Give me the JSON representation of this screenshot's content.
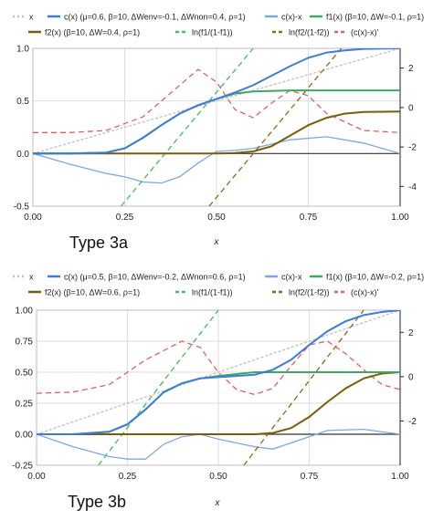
{
  "chart_data": [
    {
      "type": "line",
      "panel_label": "Type 3a",
      "xlabel": "x",
      "xlim": [
        0,
        1
      ],
      "ylim": [
        -0.5,
        1.0
      ],
      "y2lim": [
        -5,
        3
      ],
      "x_ticks": [
        "0.00",
        "0.25",
        "0.50",
        "0.75",
        "1.00"
      ],
      "y_ticks": [
        "-0.5",
        "0.0",
        "0.5",
        "1.0"
      ],
      "y2_ticks": [
        "-4",
        "-2",
        "0",
        "2"
      ],
      "legend_position": "top",
      "series": [
        {
          "name": "x",
          "color": "#c0c0c0",
          "style": "dotted",
          "axis": "left",
          "points": [
            [
              0,
              0
            ],
            [
              1,
              1
            ]
          ]
        },
        {
          "name": "c(x) (μ=0.6, β=10, ΔWenv=-0.1, ΔWnon=0.4, ρ=1)",
          "color": "#3b7dd8",
          "style": "solid",
          "axis": "left",
          "points": [
            [
              0,
              0
            ],
            [
              0.1,
              0
            ],
            [
              0.2,
              0.01
            ],
            [
              0.25,
              0.05
            ],
            [
              0.3,
              0.15
            ],
            [
              0.35,
              0.27
            ],
            [
              0.4,
              0.38
            ],
            [
              0.45,
              0.46
            ],
            [
              0.5,
              0.52
            ],
            [
              0.55,
              0.58
            ],
            [
              0.6,
              0.65
            ],
            [
              0.65,
              0.74
            ],
            [
              0.7,
              0.83
            ],
            [
              0.75,
              0.91
            ],
            [
              0.8,
              0.96
            ],
            [
              0.85,
              0.98
            ],
            [
              0.9,
              0.995
            ],
            [
              1.0,
              1.0
            ]
          ]
        },
        {
          "name": "c(x)-x",
          "color": "#7aa7e6",
          "style": "solid",
          "axis": "left",
          "points": [
            [
              0,
              0
            ],
            [
              0.1,
              -0.1
            ],
            [
              0.2,
              -0.19
            ],
            [
              0.25,
              -0.22
            ],
            [
              0.3,
              -0.27
            ],
            [
              0.35,
              -0.28
            ],
            [
              0.4,
              -0.22
            ],
            [
              0.45,
              -0.09
            ],
            [
              0.5,
              0.02
            ],
            [
              0.55,
              0.03
            ],
            [
              0.6,
              0.05
            ],
            [
              0.7,
              0.13
            ],
            [
              0.8,
              0.16
            ],
            [
              0.9,
              0.1
            ],
            [
              1.0,
              0.0
            ]
          ]
        },
        {
          "name": "f1(x) (β=10, ΔW=-0.1, ρ=1)",
          "color": "#3fa860",
          "style": "solid",
          "axis": "left",
          "points": [
            [
              0,
              0
            ],
            [
              0.1,
              0
            ],
            [
              0.2,
              0.01
            ],
            [
              0.25,
              0.05
            ],
            [
              0.3,
              0.15
            ],
            [
              0.35,
              0.27
            ],
            [
              0.4,
              0.38
            ],
            [
              0.45,
              0.46
            ],
            [
              0.5,
              0.52
            ],
            [
              0.55,
              0.57
            ],
            [
              0.6,
              0.59
            ],
            [
              0.7,
              0.6
            ],
            [
              1.0,
              0.6
            ]
          ]
        },
        {
          "name": "f2(x) (β=10, ΔW=0.4, ρ=1)",
          "color": "#7a5c0a",
          "style": "solid",
          "axis": "left",
          "points": [
            [
              0,
              0
            ],
            [
              0.5,
              0
            ],
            [
              0.55,
              0.005
            ],
            [
              0.6,
              0.02
            ],
            [
              0.65,
              0.07
            ],
            [
              0.7,
              0.17
            ],
            [
              0.75,
              0.27
            ],
            [
              0.8,
              0.34
            ],
            [
              0.85,
              0.38
            ],
            [
              0.9,
              0.395
            ],
            [
              1.0,
              0.4
            ]
          ]
        },
        {
          "name": "ln(f1/(1-f1))",
          "color": "#3fbf5e",
          "style": "dashed",
          "axis": "right",
          "points": [
            [
              0.24,
              -5
            ],
            [
              0.6,
              3
            ]
          ]
        },
        {
          "name": "ln(f2/(1-f2))",
          "color": "#8b6a10",
          "style": "dashed",
          "axis": "right",
          "points": [
            [
              0.48,
              -5
            ],
            [
              0.84,
              3
            ]
          ]
        },
        {
          "name": "(c(x)-x)'",
          "color": "#e06060",
          "style": "dashed",
          "axis": "left",
          "points": [
            [
              0,
              0.2
            ],
            [
              0.1,
              0.2
            ],
            [
              0.2,
              0.22
            ],
            [
              0.3,
              0.35
            ],
            [
              0.4,
              0.65
            ],
            [
              0.45,
              0.8
            ],
            [
              0.5,
              0.68
            ],
            [
              0.55,
              0.42
            ],
            [
              0.6,
              0.34
            ],
            [
              0.65,
              0.48
            ],
            [
              0.7,
              0.6
            ],
            [
              0.75,
              0.55
            ],
            [
              0.8,
              0.38
            ],
            [
              0.9,
              0.22
            ],
            [
              1.0,
              0.2
            ]
          ]
        }
      ]
    },
    {
      "type": "line",
      "panel_label": "Type 3b",
      "xlabel": "x",
      "xlim": [
        0,
        1
      ],
      "ylim": [
        -0.25,
        1.0
      ],
      "y2lim": [
        -4,
        3
      ],
      "x_ticks": [
        "0.00",
        "0.25",
        "0.50",
        "0.75",
        "1.00"
      ],
      "y_ticks": [
        "-0.25",
        "0.00",
        "0.25",
        "0.50",
        "0.75",
        "1.00"
      ],
      "y2_ticks": [
        "-2",
        "0",
        "2"
      ],
      "legend_position": "top",
      "series": [
        {
          "name": "x",
          "color": "#c0c0c0",
          "style": "dotted",
          "axis": "left",
          "points": [
            [
              0,
              0
            ],
            [
              1,
              1
            ]
          ]
        },
        {
          "name": "c(x) (μ=0.5, β=10, ΔWenv=-0.2, ΔWnon=0.6, ρ=1)",
          "color": "#3b7dd8",
          "style": "solid",
          "axis": "left",
          "points": [
            [
              0,
              0
            ],
            [
              0.1,
              0
            ],
            [
              0.2,
              0.02
            ],
            [
              0.25,
              0.08
            ],
            [
              0.3,
              0.2
            ],
            [
              0.35,
              0.34
            ],
            [
              0.4,
              0.41
            ],
            [
              0.45,
              0.45
            ],
            [
              0.5,
              0.46
            ],
            [
              0.6,
              0.48
            ],
            [
              0.65,
              0.52
            ],
            [
              0.7,
              0.6
            ],
            [
              0.75,
              0.72
            ],
            [
              0.8,
              0.83
            ],
            [
              0.85,
              0.91
            ],
            [
              0.9,
              0.96
            ],
            [
              0.95,
              0.985
            ],
            [
              1.0,
              1.0
            ]
          ]
        },
        {
          "name": "c(x)-x",
          "color": "#7aa7e6",
          "style": "solid",
          "axis": "left",
          "points": [
            [
              0,
              0
            ],
            [
              0.1,
              -0.1
            ],
            [
              0.2,
              -0.18
            ],
            [
              0.25,
              -0.2
            ],
            [
              0.3,
              -0.2
            ],
            [
              0.35,
              -0.08
            ],
            [
              0.4,
              -0.02
            ],
            [
              0.45,
              0.0
            ],
            [
              0.5,
              -0.04
            ],
            [
              0.6,
              -0.1
            ],
            [
              0.65,
              -0.12
            ],
            [
              0.7,
              -0.07
            ],
            [
              0.8,
              0.03
            ],
            [
              0.9,
              0.04
            ],
            [
              1.0,
              0.0
            ]
          ]
        },
        {
          "name": "f1(x) (β=10, ΔW=-0.2, ρ=1)",
          "color": "#3fa860",
          "style": "solid",
          "axis": "left",
          "points": [
            [
              0,
              0
            ],
            [
              0.1,
              0
            ],
            [
              0.2,
              0.02
            ],
            [
              0.25,
              0.08
            ],
            [
              0.3,
              0.2
            ],
            [
              0.35,
              0.34
            ],
            [
              0.4,
              0.41
            ],
            [
              0.45,
              0.45
            ],
            [
              0.5,
              0.47
            ],
            [
              0.6,
              0.5
            ],
            [
              1.0,
              0.5
            ]
          ]
        },
        {
          "name": "f2(x) (β=10, ΔW=0.6, ρ=1)",
          "color": "#7a5c0a",
          "style": "solid",
          "axis": "left",
          "points": [
            [
              0,
              0
            ],
            [
              0.6,
              0
            ],
            [
              0.65,
              0.01
            ],
            [
              0.7,
              0.05
            ],
            [
              0.75,
              0.14
            ],
            [
              0.8,
              0.26
            ],
            [
              0.85,
              0.37
            ],
            [
              0.9,
              0.45
            ],
            [
              0.95,
              0.49
            ],
            [
              1.0,
              0.5
            ]
          ]
        },
        {
          "name": "ln(f1/(1-f1))",
          "color": "#3fbf5e",
          "style": "dashed",
          "axis": "right",
          "points": [
            [
              0.17,
              -4
            ],
            [
              0.5,
              3
            ]
          ]
        },
        {
          "name": "ln(f2/(1-f2))",
          "color": "#8b6a10",
          "style": "dashed",
          "axis": "right",
          "points": [
            [
              0.57,
              -4
            ],
            [
              0.9,
              3
            ]
          ]
        },
        {
          "name": "(c(x)-x)'",
          "color": "#e06060",
          "style": "dashed",
          "axis": "left",
          "points": [
            [
              0,
              0.33
            ],
            [
              0.1,
              0.34
            ],
            [
              0.2,
              0.4
            ],
            [
              0.3,
              0.6
            ],
            [
              0.4,
              0.75
            ],
            [
              0.45,
              0.7
            ],
            [
              0.5,
              0.5
            ],
            [
              0.55,
              0.36
            ],
            [
              0.6,
              0.32
            ],
            [
              0.65,
              0.37
            ],
            [
              0.7,
              0.55
            ],
            [
              0.75,
              0.72
            ],
            [
              0.8,
              0.75
            ],
            [
              0.85,
              0.65
            ],
            [
              0.9,
              0.52
            ],
            [
              0.95,
              0.4
            ],
            [
              1.0,
              0.36
            ]
          ]
        }
      ]
    }
  ]
}
